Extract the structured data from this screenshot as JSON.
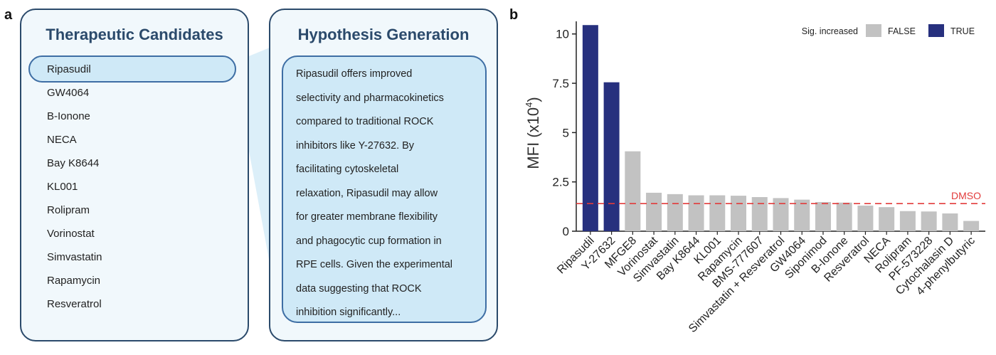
{
  "panel_a": {
    "letter": "a",
    "candidates_card": {
      "title": "Therapeutic Candidates",
      "items": [
        "Ripasudil",
        "GW4064",
        "B-Ionone",
        "NECA",
        "Bay K8644",
        "KL001",
        "Rolipram",
        "Vorinostat",
        "Simvastatin",
        "Rapamycin",
        "Resveratrol"
      ]
    },
    "hypothesis_card": {
      "title": "Hypothesis Generation",
      "lines": [
        "Ripasudil offers improved",
        "selectivity and pharmacokinetics",
        "compared to traditional ROCK",
        "inhibitors like Y-27632. By",
        "facilitating cytoskeletal",
        "relaxation, Ripasudil may allow",
        "for greater membrane flexibility",
        "and phagocytic cup formation in",
        "RPE cells. Given the experimental",
        "data suggesting that ROCK",
        "inhibition significantly..."
      ]
    },
    "colors": {
      "border": "#2b4a6b",
      "highlight": "#cfe9f7",
      "card_bg": "#f1f8fc"
    }
  },
  "panel_b": {
    "letter": "b",
    "chart_data": {
      "type": "bar",
      "categories": [
        "Ripasudil",
        "Y-27632",
        "MFGE8",
        "Vorinostat",
        "Simvastatin",
        "Bay K8644",
        "KL001",
        "Rapamycin",
        "BMS-777607",
        "Simvastatin + Resveratrol",
        "GW4064",
        "Siponimod",
        "B-Ionone",
        "Resveratrol",
        "NECA",
        "Rolipram",
        "PF-573228",
        "Cytochalasin D",
        "4-phenylbutyric"
      ],
      "values": [
        10.45,
        7.55,
        4.05,
        1.95,
        1.88,
        1.82,
        1.82,
        1.8,
        1.73,
        1.68,
        1.6,
        1.48,
        1.45,
        1.3,
        1.22,
        1.02,
        1.0,
        0.9,
        0.52
      ],
      "sig_increased": [
        true,
        true,
        false,
        false,
        false,
        false,
        false,
        false,
        false,
        false,
        false,
        false,
        false,
        false,
        false,
        false,
        false,
        false,
        false
      ],
      "ylabel_main": "MFI (x10",
      "ylabel_exp": "4",
      "ylabel_close": ")",
      "ylim": [
        0,
        11
      ],
      "yticks": [
        0,
        2.5,
        5,
        7.5,
        10
      ],
      "ytick_labels": [
        "0",
        "2.5",
        "5",
        "7.5",
        "10"
      ],
      "reference_line": {
        "label": "DMSO",
        "value": 1.4,
        "color": "#e23b3b"
      },
      "legend": {
        "title": "Sig. increased",
        "placement": "top-right",
        "entries": [
          {
            "label": "FALSE",
            "color": "#c2c2c2"
          },
          {
            "label": "TRUE",
            "color": "#27307e"
          }
        ]
      }
    }
  }
}
